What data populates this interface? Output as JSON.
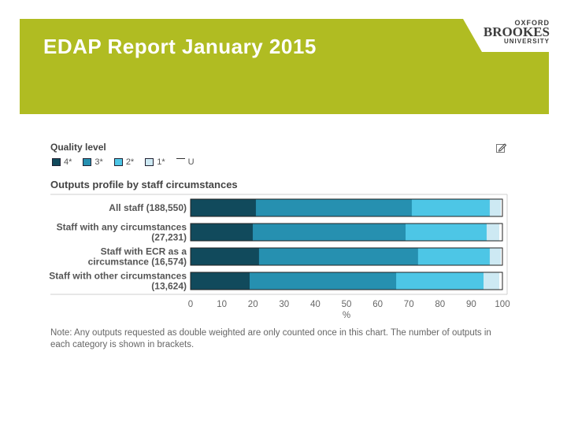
{
  "slide": {
    "title": "EDAP Report January 2015",
    "logo": {
      "line1": "OXFORD",
      "line2": "BROOKES",
      "line3": "UNIVERSITY"
    },
    "banner_color": "#b0bc22"
  },
  "chart_data": {
    "type": "bar",
    "orientation": "horizontal",
    "stacked": true,
    "legend_title": "Quality level",
    "title": "Outputs profile by staff circumstances",
    "categories": [
      [
        "All staff (188,550)"
      ],
      [
        "Staff with any circumstances",
        "(27,231)"
      ],
      [
        "Staff with ECR as a",
        "circumstance (16,574)"
      ],
      [
        "Staff with other circumstances",
        "(13,624)"
      ]
    ],
    "series": [
      {
        "name": "4*",
        "color": "#114a5c",
        "values": [
          21,
          20,
          22,
          19
        ]
      },
      {
        "name": "3*",
        "color": "#2690b0",
        "values": [
          50,
          49,
          51,
          47
        ]
      },
      {
        "name": "2*",
        "color": "#4dc6e6",
        "values": [
          25,
          26,
          23,
          28
        ]
      },
      {
        "name": "1*",
        "color": "#cde9f3",
        "values": [
          3.5,
          4,
          3.5,
          5
        ]
      },
      {
        "name": "U",
        "color": "#ffffff",
        "values": [
          0.5,
          1,
          0.5,
          1
        ]
      }
    ],
    "x_ticks": [
      "0",
      "10",
      "20",
      "30",
      "40",
      "50",
      "60",
      "70",
      "80",
      "90",
      "100"
    ],
    "xlabel": "%",
    "xlim": [
      0,
      100
    ],
    "grid": false,
    "legend_position": "top-left",
    "note": "Note: Any outputs requested as double weighted are only counted once in this chart. The number of outputs in each category is shown in brackets."
  }
}
